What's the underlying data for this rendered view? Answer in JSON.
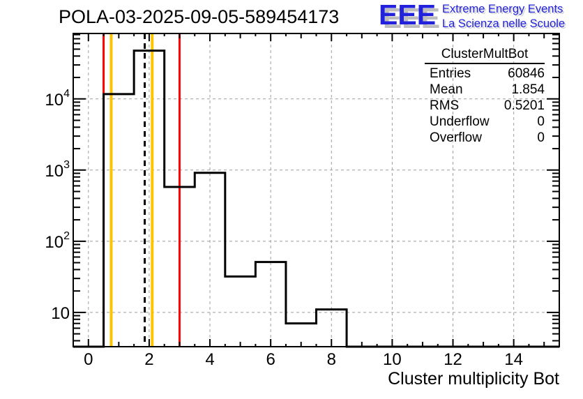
{
  "page": {
    "title": "POLA-03-2025-09-05-589454173"
  },
  "logo": {
    "letters": "EEE",
    "line1": "Extreme Energy Events",
    "line2": "La Scienza nelle Scuole",
    "text_color": "#2222dd",
    "shadow_color": "#bdbdbd"
  },
  "stats_box": {
    "title": "ClusterMultBot",
    "rows": [
      {
        "label": "Entries",
        "value": "60846"
      },
      {
        "label": "Mean",
        "value": "1.854"
      },
      {
        "label": "RMS",
        "value": "0.5201"
      },
      {
        "label": "Underflow",
        "value": "0"
      },
      {
        "label": "Overflow",
        "value": "0"
      }
    ]
  },
  "chart_data": {
    "type": "bar",
    "subtype": "step-histogram",
    "title": "POLA-03-2025-09-05-589454173",
    "xlabel": "Cluster multiplicity Bot",
    "ylabel": "",
    "y_scale": "log",
    "xlim": [
      -0.5,
      15.5
    ],
    "ylim": [
      3.3,
      83000
    ],
    "grid": true,
    "bin_centers": [
      0,
      1,
      2,
      3,
      4,
      5,
      6,
      7,
      8,
      9,
      10,
      11,
      12,
      13,
      14,
      15
    ],
    "values": [
      0,
      11700,
      47600,
      580,
      915,
      32,
      51,
      7,
      11,
      0,
      0,
      0,
      0,
      0,
      0,
      0
    ],
    "x_major_ticks": [
      0,
      2,
      4,
      6,
      8,
      10,
      12,
      14
    ],
    "y_major_ticks": [
      10,
      100,
      1000,
      10000
    ],
    "marker_lines": [
      {
        "x": 0.5,
        "color": "#ff0000",
        "style": "solid",
        "name": "red-low-threshold-line"
      },
      {
        "x": 3.0,
        "color": "#ff0000",
        "style": "solid",
        "name": "red-high-threshold-line"
      },
      {
        "x": 0.75,
        "color": "#ffc400",
        "style": "solid",
        "name": "yellow-low-threshold-line"
      },
      {
        "x": 2.1,
        "color": "#ffc400",
        "style": "solid",
        "name": "yellow-high-threshold-line"
      },
      {
        "x": 1.854,
        "color": "#000000",
        "style": "dashed",
        "name": "mean-dashed-line"
      }
    ],
    "colors": {
      "hist": "#000000",
      "grid": "#9e9e9e"
    }
  }
}
